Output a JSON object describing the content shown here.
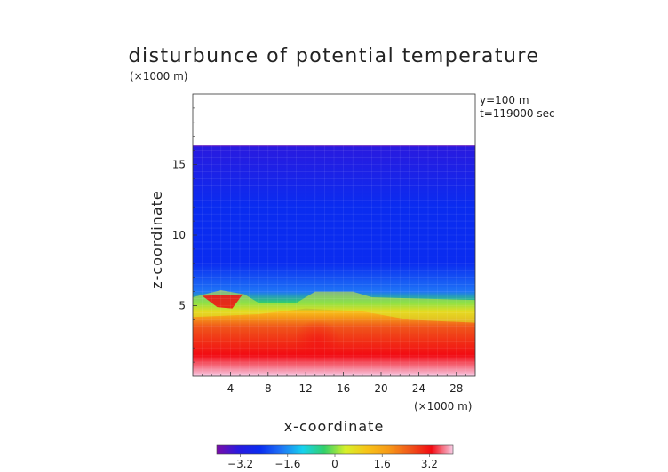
{
  "chart_data": {
    "type": "heatmap",
    "title": "disturbunce of potential temperature",
    "xlabel": "x-coordinate",
    "ylabel": "z-coordinate",
    "x_unit": "(×1000 m)",
    "y_unit": "(×1000 m)",
    "annotations": [
      "y=100 m",
      "t=119000 sec"
    ],
    "xlim": [
      0,
      30
    ],
    "ylim": [
      0,
      20
    ],
    "x_ticks": [
      4,
      8,
      12,
      16,
      20,
      24,
      28
    ],
    "y_ticks": [
      5,
      10,
      15
    ],
    "data_top_z": 16.4,
    "colorbar": {
      "range": [
        -4.0,
        4.0
      ],
      "ticks": [
        -3.2,
        -1.6,
        0,
        1.6,
        3.2
      ],
      "tick_labels": [
        "−3.2",
        "−1.6",
        "0",
        "1.6",
        "3.2"
      ],
      "colors": [
        "#7a0da8",
        "#2a1adf",
        "#0a2cf0",
        "#1f74f6",
        "#16d2ee",
        "#32d06a",
        "#d7f02a",
        "#f7c318",
        "#f79a18",
        "#f0561a",
        "#f20a12",
        "#f8cce6"
      ]
    },
    "field_profile_by_z": [
      {
        "z": 0.0,
        "value": 3.8
      },
      {
        "z": 1.5,
        "value": 3.2
      },
      {
        "z": 3.5,
        "value": 2.4
      },
      {
        "z": 4.6,
        "value": 1.4
      },
      {
        "z": 5.2,
        "value": -0.4
      },
      {
        "z": 6.0,
        "value": -1.6
      },
      {
        "z": 8.0,
        "value": -2.3
      },
      {
        "z": 12.0,
        "value": -2.8
      },
      {
        "z": 16.4,
        "value": -3.2
      }
    ]
  }
}
